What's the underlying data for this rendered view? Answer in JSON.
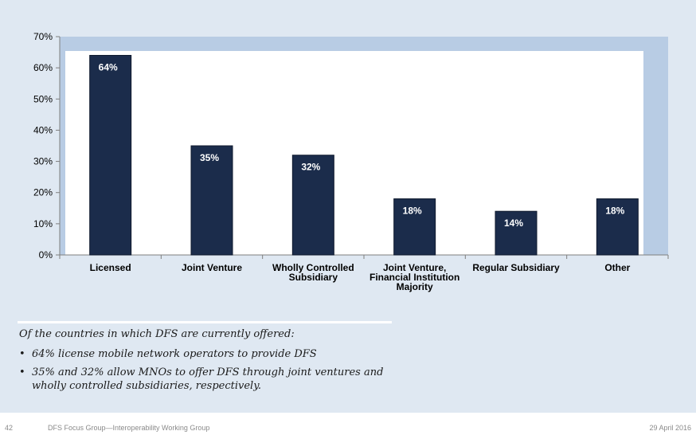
{
  "chart_data": {
    "type": "bar",
    "categories": [
      [
        "Licensed"
      ],
      [
        "Joint Venture"
      ],
      [
        "Wholly Controlled",
        "Subsidiary"
      ],
      [
        "Joint Venture,",
        "Financial Institution",
        "Majority"
      ],
      [
        "Regular Subsidiary"
      ],
      [
        "Other"
      ]
    ],
    "values": [
      64,
      35,
      32,
      18,
      14,
      18
    ],
    "data_labels": [
      "64%",
      "35%",
      "32%",
      "18%",
      "14%",
      "18%"
    ],
    "yticks": [
      "0%",
      "10%",
      "20%",
      "30%",
      "40%",
      "50%",
      "60%",
      "70%"
    ],
    "ylim": [
      0,
      70
    ],
    "title": "",
    "xlabel": "",
    "ylabel": "",
    "grid": false,
    "colors": {
      "bar": "#1b2c4b",
      "plot_bg": "#ffffff",
      "frame": "#b8cce4"
    }
  },
  "notes": {
    "intro": "Of the countries in which DFS are currently offered:",
    "bullets": [
      "64% license mobile network operators to provide DFS",
      "35% and 32% allow MNOs to offer DFS through joint ventures and wholly controlled subsidiaries, respectively."
    ]
  },
  "footer": {
    "page_number": "42",
    "text": "DFS Focus Group—Interoperability Working Group",
    "date": "29 April 2016"
  }
}
